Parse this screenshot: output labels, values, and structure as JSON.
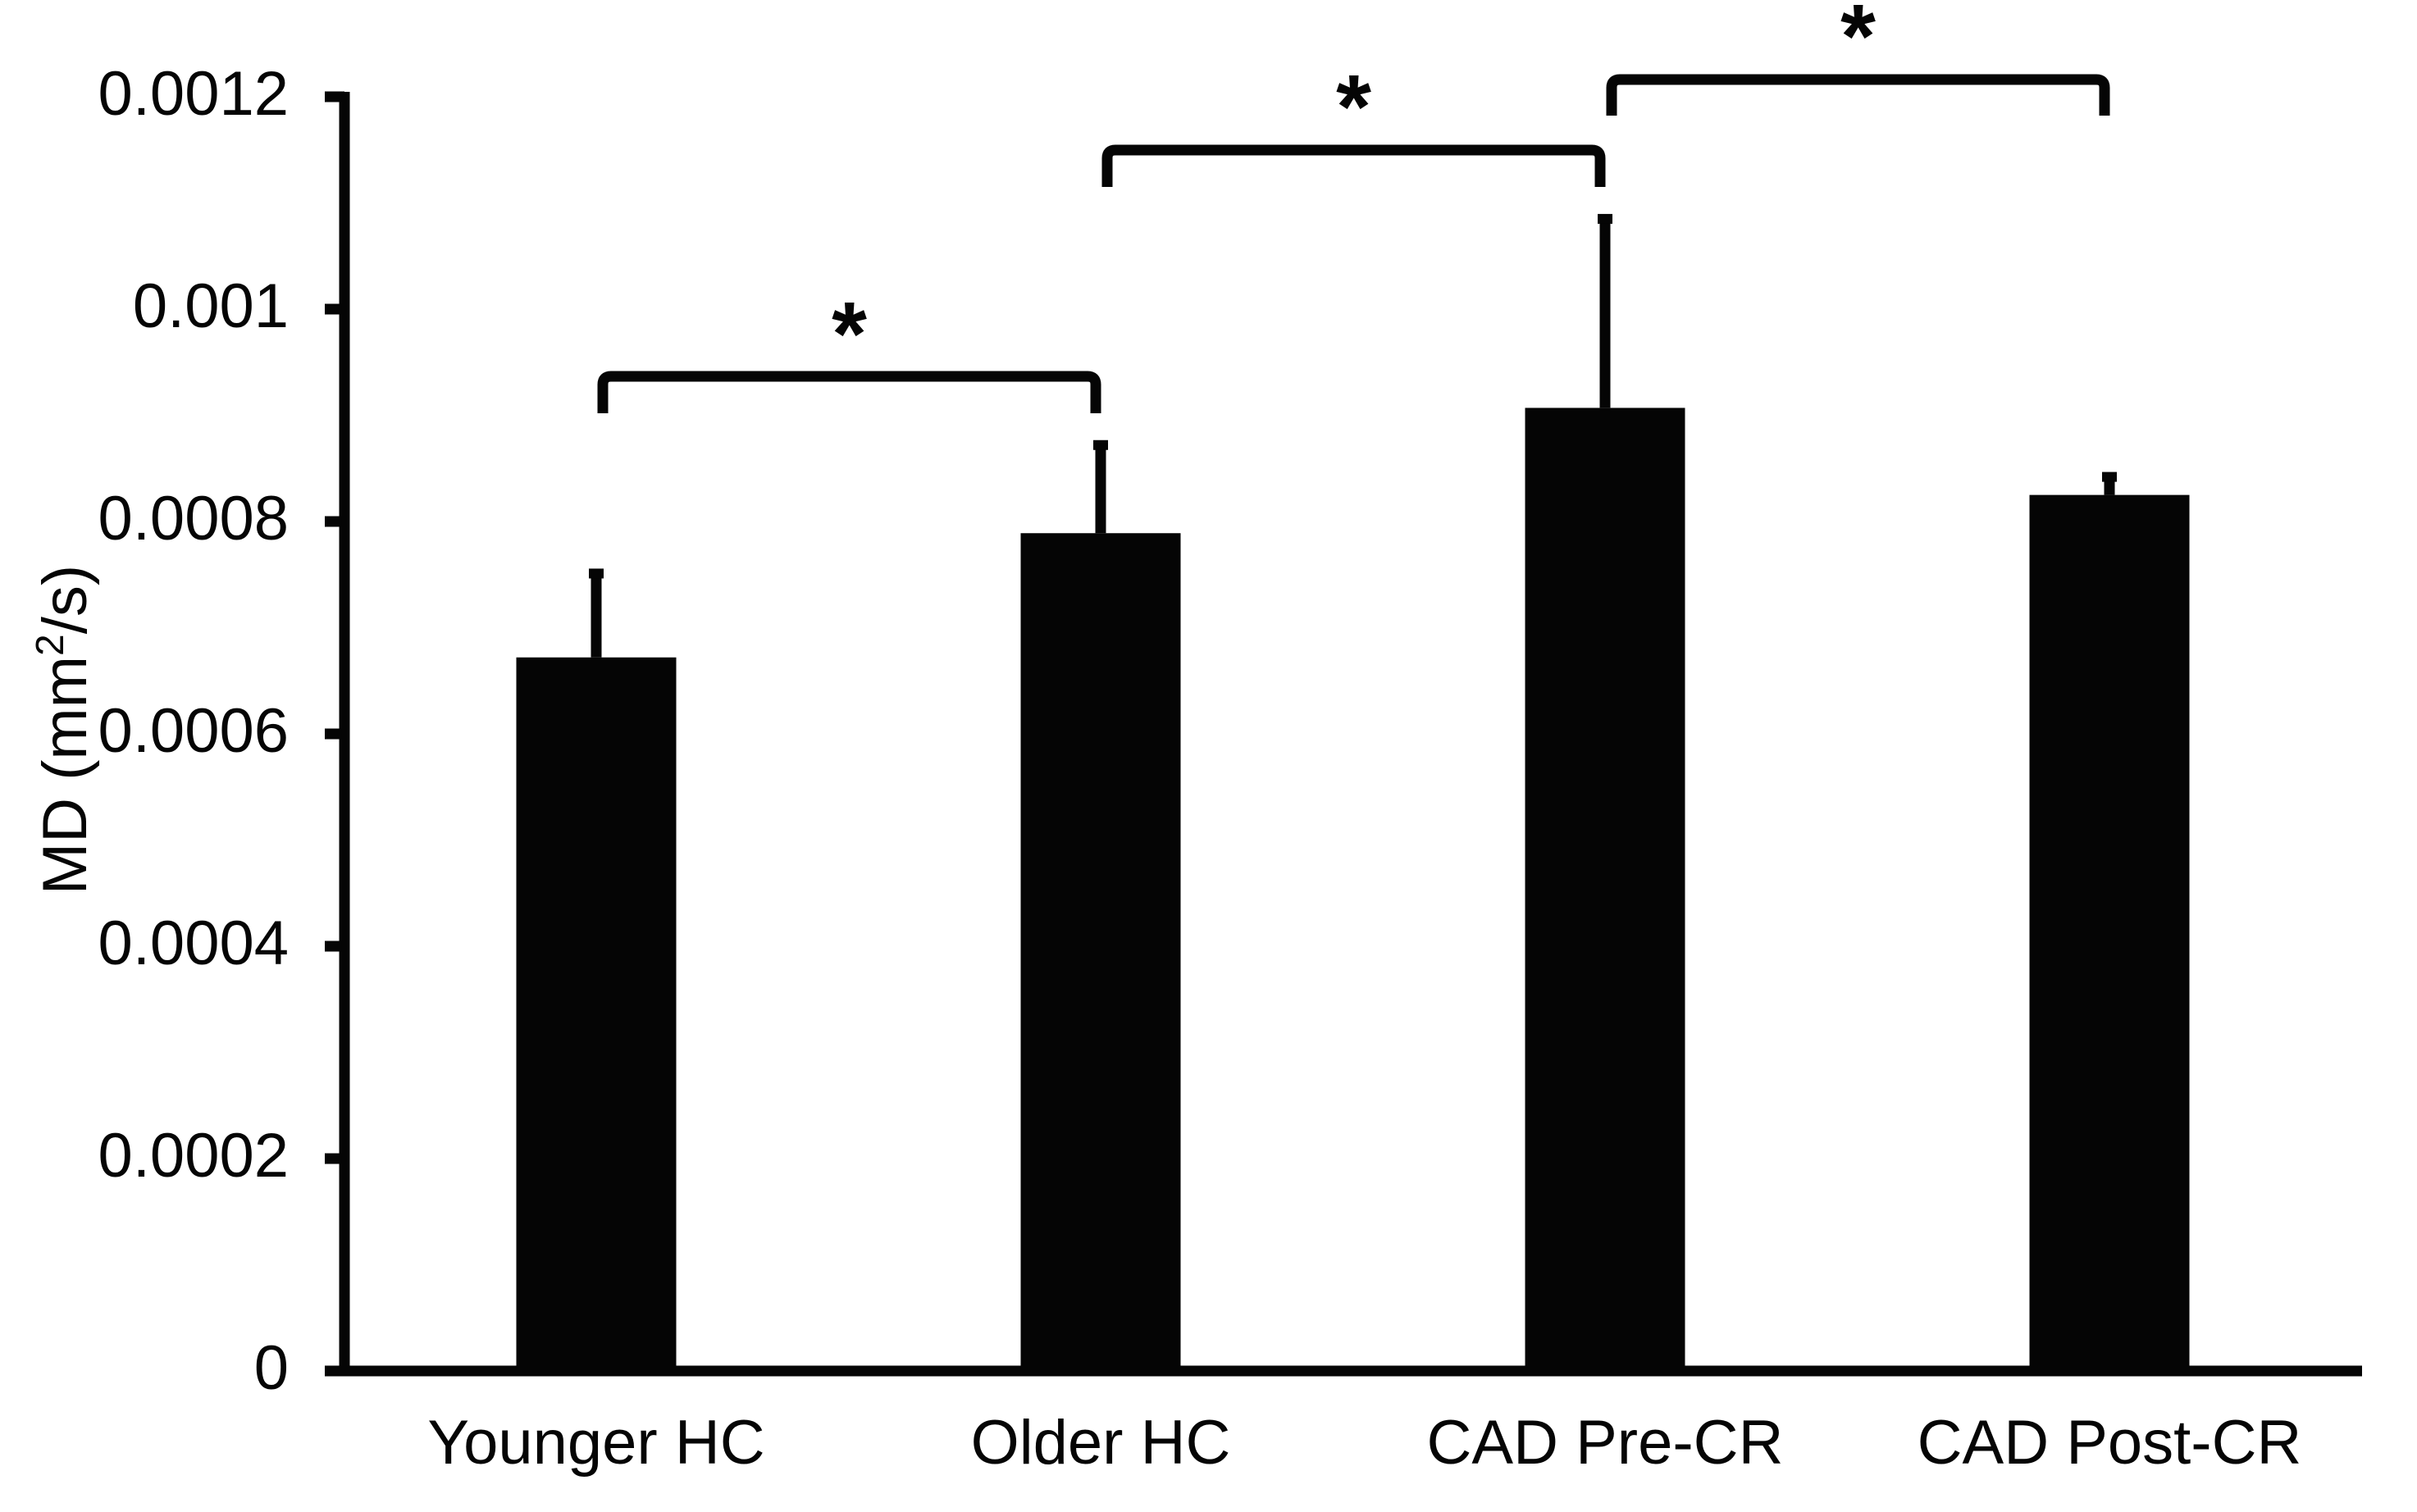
{
  "chart_data": {
    "type": "bar",
    "title": "",
    "xlabel": "",
    "ylabel": "MD (mm²/s)",
    "ylabel_parts": {
      "main": "MD (mm",
      "superscript": "2",
      "tail": "/s)"
    },
    "ylim": [
      0,
      0.0012
    ],
    "yticks": [
      0,
      0.0002,
      0.0004,
      0.0006,
      0.0008,
      0.001,
      0.0012
    ],
    "ytick_labels": [
      "0",
      "0.0002",
      "0.0004",
      "0.0006",
      "0.0008",
      "0.001",
      "0.0012"
    ],
    "grid": false,
    "legend": null,
    "bar_color": "#050505",
    "categories": [
      "Younger HC",
      "Older HC",
      "CAD Pre-CR",
      "CAD Post-CR"
    ],
    "values": [
      0.000672,
      0.000789,
      0.000907,
      0.000825
    ],
    "error_upper": [
      0.000751,
      0.000872,
      0.001085,
      0.000842
    ],
    "significance": [
      {
        "from": "Younger HC",
        "to": "Older HC",
        "label": "*"
      },
      {
        "from": "Older HC",
        "to": "CAD Pre-CR",
        "label": "*"
      },
      {
        "from": "CAD Pre-CR",
        "to": "CAD Post-CR",
        "label": "*"
      }
    ]
  }
}
